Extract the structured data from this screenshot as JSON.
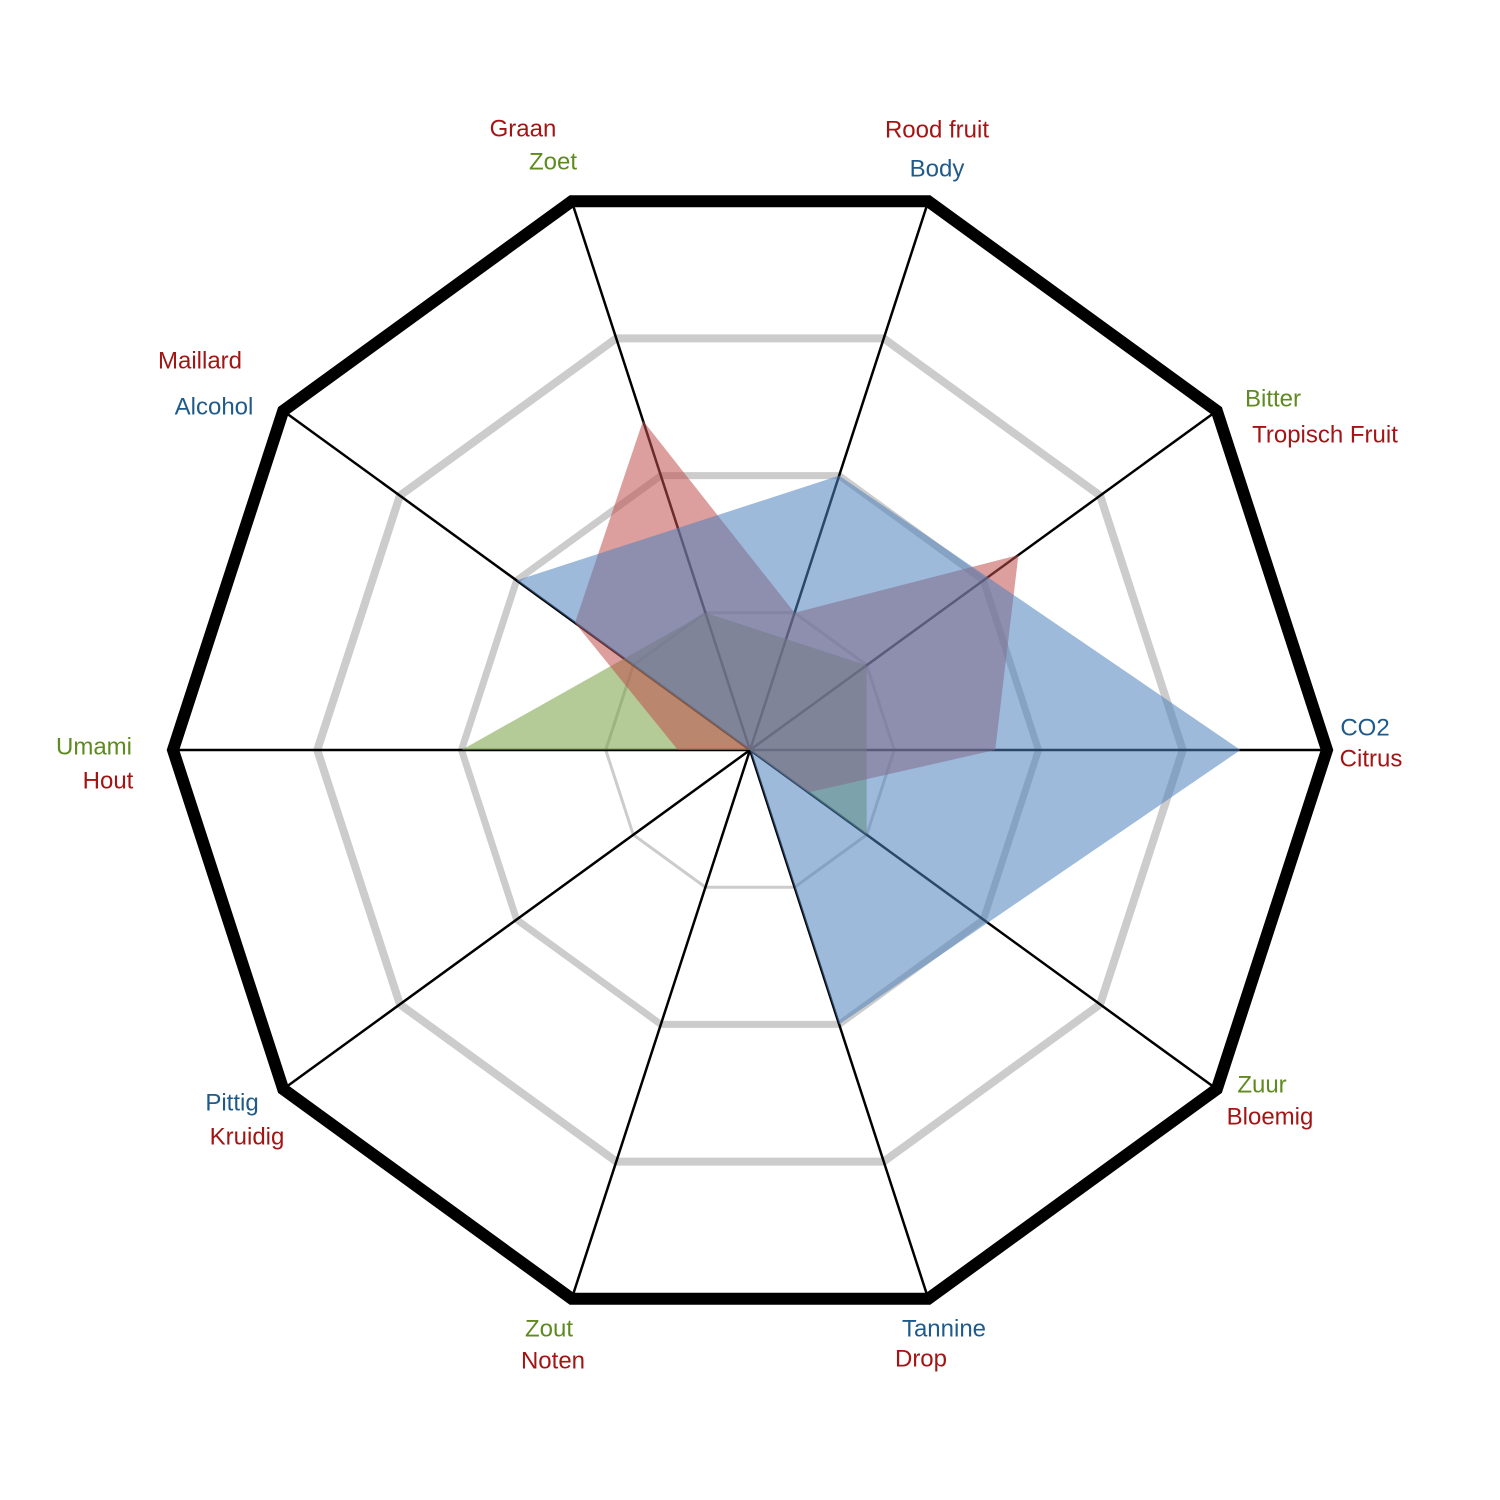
{
  "chart_data": {
    "type": "radar",
    "ylim": [
      0,
      4
    ],
    "yticks": [
      1,
      2,
      3,
      4
    ],
    "series": [
      {
        "color": "#77a043",
        "label_color": "#5f8a1f",
        "labels": [
          null,
          "Bitter",
          null,
          "Zoet",
          null,
          "Umami",
          null,
          "Zout",
          null,
          "Zuur"
        ],
        "values": [
          null,
          1,
          null,
          1,
          null,
          2,
          null,
          0,
          null,
          1
        ]
      },
      {
        "color": "#c0504d",
        "label_color": "#a31515",
        "labels": [
          "Citrus",
          "Tropisch Fruit",
          "Rood fruit",
          "Graan",
          "Maillard",
          "Hout",
          "Kruidig",
          "Noten",
          "Drop",
          "Bloemig"
        ],
        "values": [
          1.7,
          2.3,
          1,
          2.4,
          1.5,
          0.5,
          0,
          0.6,
          0,
          0.5
        ]
      },
      {
        "color": "#4f81bd",
        "label_color": "#1f5a8b",
        "labels": [
          "CO2",
          null,
          "Body",
          null,
          "Alcohol",
          null,
          "Pittig",
          null,
          "Tannine",
          null
        ],
        "values": [
          3.4,
          null,
          2,
          null,
          2,
          null,
          0,
          null,
          2,
          null
        ]
      }
    ]
  }
}
